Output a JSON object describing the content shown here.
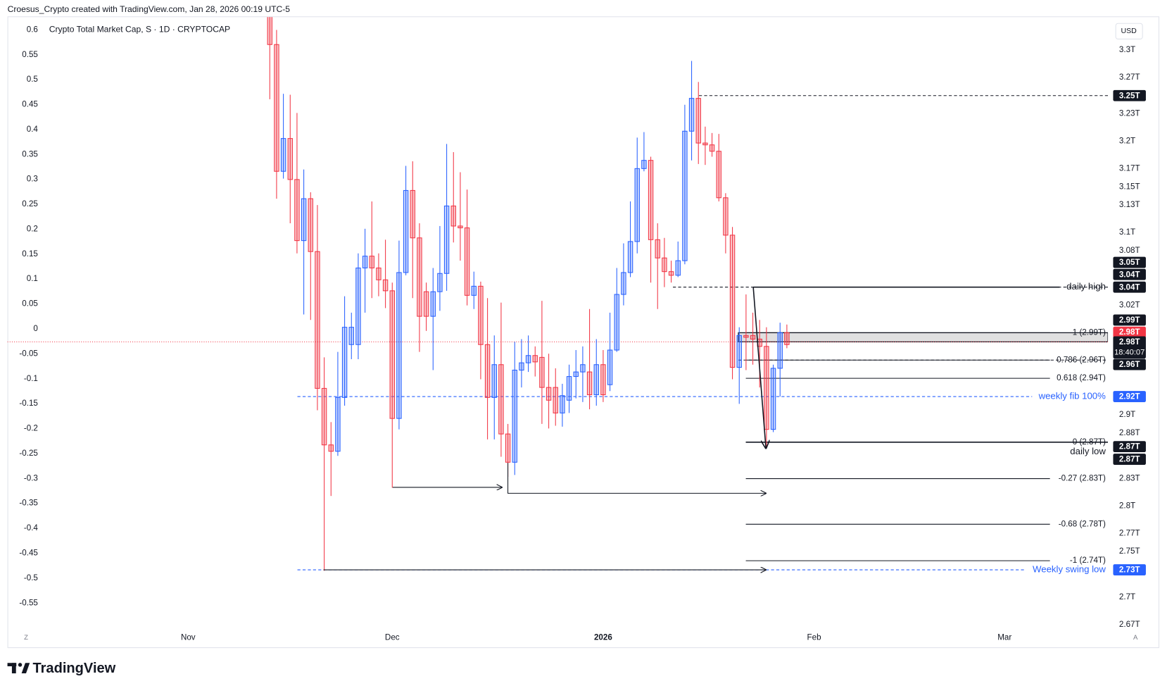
{
  "header": "Croesus_Crypto created with TradingView.com, Jan 28, 2026 00:19 UTC-5",
  "branding": "TradingView",
  "chart_data": {
    "type": "candlestick",
    "title": "Crypto Total Market Cap, S · 1D · CRYPTOCAP",
    "currency": "USD",
    "scale_buttons": [
      "Z",
      "A"
    ],
    "up_color": "#2962ff",
    "down_color": "#f23645",
    "grid": false,
    "categories": [
      "Nov",
      null,
      null,
      null,
      null,
      null,
      null,
      null,
      null,
      null,
      null,
      null,
      null,
      null,
      null,
      null,
      null,
      null,
      null,
      null,
      null,
      null,
      null,
      null,
      null,
      null,
      null,
      null,
      null,
      null,
      "Dec",
      null,
      null,
      null,
      null,
      null,
      null,
      null,
      null,
      null,
      null,
      null,
      null,
      null,
      null,
      null,
      null,
      null,
      null,
      null,
      null,
      null,
      null,
      null,
      null,
      null,
      null,
      null,
      null,
      null,
      null,
      "2026",
      null,
      null,
      null,
      null,
      null,
      null,
      null,
      null,
      null,
      null,
      null,
      null,
      null,
      null,
      null,
      null,
      null,
      null,
      null,
      null,
      null,
      null,
      null,
      null,
      null,
      null,
      null,
      null,
      null,
      null,
      "Feb",
      null,
      null,
      null,
      null,
      null,
      null,
      null,
      null,
      null,
      null,
      null,
      null,
      null,
      null,
      null,
      null,
      null,
      null,
      null,
      null,
      null,
      null,
      null,
      null,
      null,
      null,
      null,
      "Mar",
      null,
      null,
      null,
      null,
      null,
      null,
      null,
      null,
      null,
      null,
      null,
      null,
      null,
      null
    ],
    "open": [
      null,
      null,
      null,
      null,
      null,
      null,
      null,
      null,
      null,
      null,
      null,
      null,
      3.338,
      3.306,
      3.167,
      3.203,
      3.158,
      3.091,
      3.137,
      3.079,
      2.929,
      2.867,
      2.86,
      2.919,
      2.977,
      2.977,
      3.061,
      3.074,
      3.061,
      3.048,
      3.036,
      2.896,
      3.056,
      3.146,
      3.094,
      3.035,
      3.008,
      3.035,
      3.055,
      3.129,
      3.107,
      3.105,
      3.031,
      3.041,
      2.977,
      2.919,
      2.955,
      2.879,
      2.848,
      2.949,
      2.957,
      2.965,
      2.963,
      2.93,
      2.93,
      2.902,
      2.916,
      2.942,
      2.947,
      2.947,
      2.922,
      2.955,
      2.933,
      2.971,
      3.032,
      3.056,
      3.09,
      3.17,
      3.179,
      3.092,
      3.072,
      3.057,
      3.053,
      3.069,
      3.211,
      3.247,
      3.198,
      3.196,
      3.189,
      3.138,
      3.097,
      2.952,
      2.987,
      2.987,
      2.983,
      2.975,
      2.884,
      2.951,
      2.99,
      null,
      null,
      null,
      null,
      null,
      null,
      null,
      null,
      null,
      null,
      null,
      null,
      null,
      null,
      null,
      null,
      null,
      null,
      null,
      null,
      null,
      null,
      null,
      null,
      null,
      null,
      null,
      null,
      null,
      null,
      null,
      null,
      null,
      null,
      null,
      null,
      null,
      null,
      null,
      null,
      null,
      null,
      null,
      null,
      null,
      null
    ],
    "high": [
      null,
      null,
      null,
      null,
      null,
      null,
      null,
      null,
      null,
      null,
      null,
      null,
      3.338,
      3.322,
      3.252,
      3.251,
      3.231,
      3.169,
      3.144,
      3.13,
      2.963,
      2.892,
      2.969,
      3.03,
      3.012,
      3.077,
      3.104,
      3.134,
      3.077,
      3.092,
      3.045,
      3.091,
      3.173,
      3.178,
      3.11,
      3.045,
      3.061,
      3.107,
      3.197,
      3.188,
      3.166,
      3.147,
      3.057,
      3.046,
      3.028,
      2.987,
      3.023,
      2.89,
      2.98,
      2.983,
      2.987,
      2.975,
      3.025,
      2.967,
      2.951,
      2.934,
      2.955,
      2.971,
      2.975,
      3.016,
      2.983,
      2.971,
      3.012,
      3.061,
      3.088,
      3.134,
      3.204,
      3.21,
      3.183,
      3.11,
      3.094,
      3.069,
      3.09,
      3.24,
      3.288,
      3.265,
      3.216,
      3.209,
      3.208,
      3.143,
      3.106,
      2.996,
      3.032,
      3.012,
      3.004,
      2.996,
      2.955,
      3.001,
      2.999,
      null,
      null,
      null,
      null,
      null,
      null,
      null,
      null,
      null,
      null,
      null,
      null,
      null,
      null,
      null,
      null,
      null,
      null,
      null,
      null,
      null,
      null,
      null,
      null,
      null,
      null,
      null,
      null,
      null,
      null,
      null,
      null,
      null,
      null,
      null,
      null,
      null,
      null,
      null,
      null,
      null,
      null,
      null,
      null,
      null,
      null
    ],
    "low": [
      null,
      null,
      null,
      null,
      null,
      null,
      null,
      null,
      null,
      null,
      null,
      null,
      3.246,
      3.137,
      3.159,
      3.11,
      3.077,
      3.01,
      3.004,
      2.905,
      2.729,
      2.811,
      2.855,
      2.91,
      2.961,
      2.961,
      3.012,
      3.028,
      3.03,
      3.017,
      2.82,
      2.884,
      3.053,
      3.028,
      2.969,
      2.992,
      2.949,
      3.014,
      3.036,
      3.089,
      3.069,
      3.02,
      3.016,
      2.939,
      2.873,
      2.873,
      2.854,
      2.832,
      2.834,
      2.93,
      2.947,
      2.942,
      2.89,
      2.885,
      2.888,
      2.887,
      2.902,
      2.918,
      2.914,
      2.906,
      2.91,
      2.914,
      2.926,
      2.969,
      3.02,
      3.051,
      3.077,
      3.167,
      3.045,
      3.016,
      3.04,
      3.045,
      3.051,
      3.065,
      3.179,
      3.175,
      3.174,
      3.183,
      3.134,
      3.077,
      2.939,
      2.912,
      2.949,
      2.955,
      2.93,
      2.863,
      2.881,
      2.92,
      2.973,
      null,
      null,
      null,
      null,
      null,
      null,
      null,
      null,
      null,
      null,
      null,
      null,
      null,
      null,
      null,
      null,
      null,
      null,
      null,
      null,
      null,
      null,
      null,
      null,
      null,
      null,
      null,
      null,
      null,
      null,
      null,
      null,
      null,
      null,
      null,
      null,
      null,
      null,
      null,
      null,
      null,
      null,
      null,
      null,
      null,
      null
    ],
    "close": [
      null,
      null,
      null,
      null,
      null,
      null,
      null,
      null,
      null,
      null,
      null,
      null,
      3.306,
      3.167,
      3.203,
      3.158,
      3.091,
      3.137,
      3.079,
      2.929,
      2.867,
      2.86,
      2.919,
      2.996,
      2.996,
      3.061,
      3.074,
      3.061,
      3.048,
      3.036,
      2.896,
      3.056,
      3.146,
      3.094,
      3.008,
      3.008,
      3.035,
      3.055,
      3.129,
      3.107,
      3.105,
      3.031,
      3.041,
      2.977,
      2.919,
      2.955,
      2.879,
      2.848,
      2.949,
      2.957,
      2.965,
      2.958,
      2.93,
      2.916,
      2.902,
      2.921,
      2.942,
      2.947,
      2.955,
      2.922,
      2.955,
      2.922,
      2.971,
      3.032,
      3.056,
      3.09,
      3.17,
      3.179,
      3.092,
      3.072,
      3.057,
      3.053,
      3.069,
      3.211,
      3.247,
      3.198,
      3.196,
      3.189,
      3.138,
      3.097,
      2.952,
      2.987,
      2.985,
      2.983,
      2.975,
      2.884,
      2.951,
      2.99,
      2.977,
      null,
      null,
      null,
      null,
      null,
      null,
      null,
      null,
      null,
      null,
      null,
      null,
      null,
      null,
      null,
      null,
      null,
      null,
      null,
      null,
      null,
      null,
      null,
      null,
      null,
      null,
      null,
      null,
      null,
      null,
      null,
      null,
      null,
      null,
      null,
      null,
      null,
      null,
      null,
      null,
      null,
      null,
      null,
      null,
      null,
      null
    ],
    "ylim": [
      2.663,
      3.332
    ],
    "yticks": [
      {
        "value": 3.3,
        "label": "3.3T"
      },
      {
        "value": 3.27,
        "label": "3.27T"
      },
      {
        "value": 3.23,
        "label": "3.23T"
      },
      {
        "value": 3.2,
        "label": "3.2T"
      },
      {
        "value": 3.17,
        "label": "3.17T"
      },
      {
        "value": 3.15,
        "label": "3.15T"
      },
      {
        "value": 3.13,
        "label": "3.13T"
      },
      {
        "value": 3.1,
        "label": "3.1T"
      },
      {
        "value": 3.08,
        "label": "3.08T"
      },
      {
        "value": 3.02,
        "label": "3.02T"
      },
      {
        "value": 2.9,
        "label": "2.9T"
      },
      {
        "value": 2.88,
        "label": "2.88T"
      },
      {
        "value": 2.83,
        "label": "2.83T"
      },
      {
        "value": 2.8,
        "label": "2.8T"
      },
      {
        "value": 2.77,
        "label": "2.77T"
      },
      {
        "value": 2.75,
        "label": "2.75T"
      },
      {
        "value": 2.7,
        "label": "2.7T"
      },
      {
        "value": 2.67,
        "label": "2.67T"
      }
    ],
    "y2lim": [
      -0.606,
      0.618
    ],
    "y2ticks": [
      0.6,
      0.55,
      0.5,
      0.45,
      0.4,
      0.35,
      0.3,
      0.25,
      0.2,
      0.15,
      0.1,
      0.05,
      0,
      -0.05,
      -0.1,
      -0.15,
      -0.2,
      -0.25,
      -0.3,
      -0.35,
      -0.4,
      -0.45,
      -0.5,
      -0.55
    ],
    "price_labels": [
      {
        "value": 3.25,
        "label": "3.25T",
        "color": "#131722"
      },
      {
        "value": 3.05,
        "label": "3.05T",
        "color": "#131722"
      },
      {
        "value": 3.04,
        "label": "3.04T",
        "color": "#131722"
      },
      {
        "value": 3.04,
        "label": "3.04T",
        "color": "#131722"
      },
      {
        "value": 2.99,
        "label": "2.99T",
        "color": "#131722"
      },
      {
        "value": 2.98,
        "label": "2.98T",
        "color": "#f23645"
      },
      {
        "value": 2.98,
        "label": "2.98T",
        "color": "#131722",
        "countdown": "18:40:07"
      },
      {
        "value": 2.96,
        "label": "2.96T",
        "color": "#131722"
      },
      {
        "value": 2.92,
        "label": "2.92T",
        "color": "#2962ff"
      },
      {
        "value": 2.87,
        "label": "2.87T",
        "color": "#131722"
      },
      {
        "value": 2.87,
        "label": "2.87T",
        "color": "#131722"
      },
      {
        "value": 2.73,
        "label": "2.73T",
        "color": "#2962ff"
      }
    ],
    "fib_levels": [
      {
        "label": "1 (2.99T)",
        "value": 2.99
      },
      {
        "label": "0.786 (2.96T)",
        "value": 2.96
      },
      {
        "label": "0.618 (2.94T)",
        "value": 2.94
      },
      {
        "label": "0 (2.87T)",
        "value": 2.87
      },
      {
        "label": "-0.27 (2.83T)",
        "value": 2.83
      },
      {
        "label": "-0.68 (2.78T)",
        "value": 2.78
      },
      {
        "label": "-1 (2.74T)",
        "value": 2.74
      }
    ],
    "texts": {
      "daily_high": "daily high",
      "daily_low": "daily low",
      "weekly_fib": "weekly fib 100%",
      "weekly_swing_low": "Weekly swing low"
    }
  }
}
